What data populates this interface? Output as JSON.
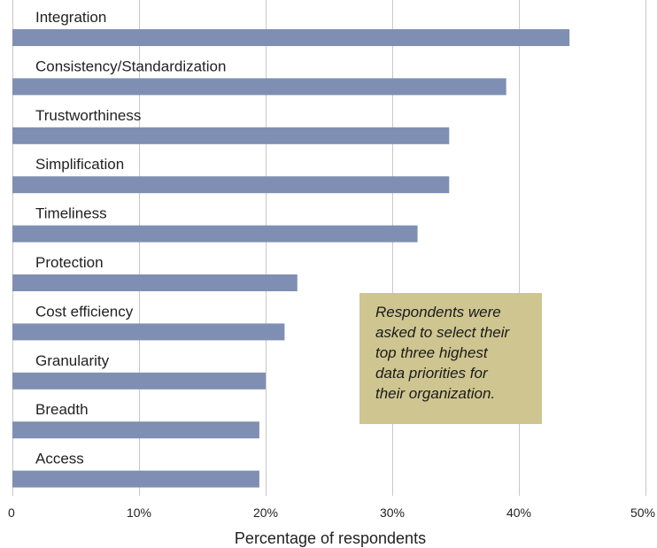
{
  "chart_data": {
    "type": "bar",
    "orientation": "horizontal",
    "categories": [
      "Integration",
      "Consistency/Standardization",
      "Trustworthiness",
      "Simplification",
      "Timeliness",
      "Protection",
      "Cost efficiency",
      "Granularity",
      "Breadth",
      "Access"
    ],
    "values": [
      44,
      39,
      34.5,
      34.5,
      32,
      22.5,
      21.5,
      20,
      19.5,
      19.5
    ],
    "xlabel": "Percentage of respondents",
    "ylabel": "",
    "xlim": [
      0,
      50
    ],
    "xticks": [
      0,
      10,
      20,
      30,
      40,
      50
    ],
    "xtick_labels": [
      "0",
      "10%",
      "20%",
      "30%",
      "40%",
      "50%"
    ],
    "grid": true,
    "bar_color": "#7f8fb3",
    "grid_color": "#c8c8c8",
    "annotation": {
      "lines": [
        "Respondents were",
        "asked to select their",
        "top three highest",
        "data priorities for",
        "their organization."
      ],
      "background": "#cec590"
    }
  }
}
